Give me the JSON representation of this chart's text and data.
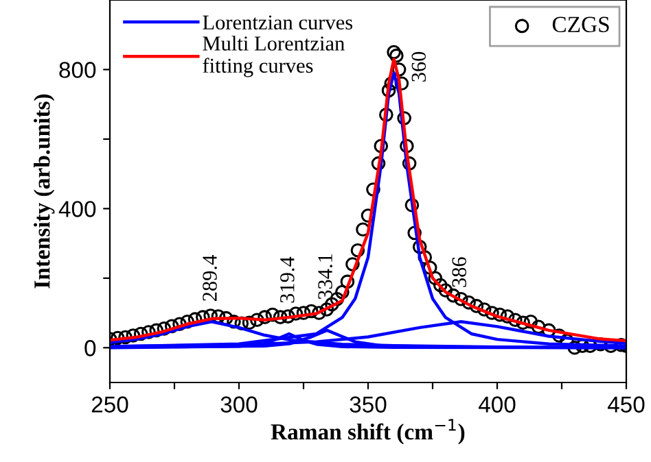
{
  "chart_data": {
    "type": "line",
    "xlabel": "Raman shift (cm$^{−1}$)",
    "ylabel": "Intensity (arb.units)",
    "xlim": [
      250,
      450
    ],
    "xticks": [
      250,
      {
        "value": 275,
        "label": null
      },
      300,
      {
        "value": 325,
        "label": null
      },
      350,
      {
        "value": 375,
        "label": null
      },
      400,
      {
        "value": 425,
        "label": null
      },
      450
    ],
    "ylim": [
      -100,
      1000
    ],
    "yticks": [
      0,
      {
        "value": 200,
        "label": null
      },
      400,
      {
        "value": 600,
        "label": null
      },
      800
    ],
    "grid": false,
    "legend": "top right",
    "series": [
      {
        "name": "CZGS",
        "type": "scatter",
        "marker": "circle",
        "color": "#000000",
        "x": [
          250,
          253,
          256,
          259,
          262,
          265,
          268,
          271,
          274,
          277,
          280,
          283,
          286,
          289,
          292,
          295,
          298,
          301,
          304,
          307,
          310,
          313,
          316,
          319,
          322,
          325,
          328,
          331,
          334,
          336,
          338,
          340,
          342,
          344,
          346,
          348,
          350,
          352,
          354,
          355,
          357,
          358,
          359,
          360,
          361,
          362,
          363,
          364,
          365,
          366,
          367,
          368,
          370,
          372,
          374,
          376,
          378,
          380,
          383,
          386,
          389,
          392,
          395,
          398,
          401,
          404,
          407,
          410,
          413,
          416,
          420,
          424,
          427,
          430,
          433,
          436,
          440,
          444,
          448,
          450
        ],
        "values": [
          25,
          28,
          30,
          35,
          40,
          45,
          50,
          55,
          62,
          68,
          75,
          82,
          88,
          92,
          90,
          85,
          75,
          70,
          72,
          80,
          88,
          95,
          88,
          90,
          98,
          100,
          105,
          100,
          110,
          125,
          140,
          160,
          190,
          240,
          280,
          340,
          380,
          455,
          530,
          580,
          670,
          740,
          760,
          850,
          840,
          800,
          760,
          660,
          580,
          530,
          410,
          330,
          290,
          260,
          230,
          200,
          180,
          165,
          150,
          140,
          130,
          120,
          110,
          100,
          95,
          90,
          80,
          72,
          75,
          60,
          50,
          35,
          20,
          0,
          5,
          5,
          10,
          5,
          8,
          5
        ]
      },
      {
        "name": "Lorentzian curves",
        "color": "#0000ff",
        "x": [
          250,
          260,
          270,
          280,
          289.4,
          300,
          310,
          320,
          340,
          360,
          400,
          450
        ],
        "values": [
          15,
          24,
          39,
          61,
          75,
          58,
          36,
          22,
          10,
          6,
          2,
          1
        ]
      },
      {
        "color": "#0000ff",
        "x": [
          250,
          300,
          310,
          315,
          319.4,
          325,
          330,
          340,
          360,
          450
        ],
        "values": [
          0,
          4,
          12,
          26,
          40,
          21,
          10,
          3,
          1,
          0
        ]
      },
      {
        "color": "#0000ff",
        "x": [
          250,
          310,
          320,
          328,
          334.1,
          340,
          345,
          355,
          380,
          450
        ],
        "values": [
          1,
          5,
          12,
          31,
          50,
          32,
          17,
          6,
          2,
          0
        ]
      },
      {
        "color": "#0000ff",
        "x": [
          250,
          300,
          330,
          340,
          345,
          350,
          355,
          358,
          360,
          362,
          365,
          370,
          375,
          380,
          390,
          400,
          420,
          450
        ],
        "values": [
          3,
          11,
          40,
          87,
          141,
          260,
          524,
          731,
          790,
          731,
          524,
          260,
          141,
          87,
          40,
          24,
          11,
          5
        ]
      },
      {
        "color": "#0000ff",
        "x": [
          250,
          300,
          330,
          350,
          370,
          386,
          400,
          420,
          440,
          450
        ],
        "values": [
          4,
          8,
          17,
          31,
          58,
          75,
          61,
          33,
          18,
          13
        ]
      },
      {
        "name": "Multi Lorentzian\nfitting curves",
        "color": "#ff0000",
        "x": [
          250,
          260,
          270,
          280,
          290,
          300,
          310,
          320,
          330,
          340,
          350,
          355,
          358,
          360,
          362,
          365,
          370,
          375,
          380,
          390,
          400,
          420,
          440,
          450
        ],
        "values": [
          22,
          30,
          45,
          68,
          84,
          85,
          80,
          88,
          98,
          135,
          330,
          560,
          760,
          830,
          770,
          560,
          310,
          200,
          160,
          120,
          90,
          50,
          25,
          20
        ]
      }
    ],
    "annotations": [
      {
        "text": "289.4",
        "x": 289.4,
        "y": 110
      },
      {
        "text": "319.4",
        "x": 319.4,
        "y": 105
      },
      {
        "text": "334.1",
        "x": 334.1,
        "y": 115
      },
      {
        "text": "360",
        "x": 360,
        "y": 790
      },
      {
        "text": "386",
        "x": 386,
        "y": 150
      }
    ]
  }
}
